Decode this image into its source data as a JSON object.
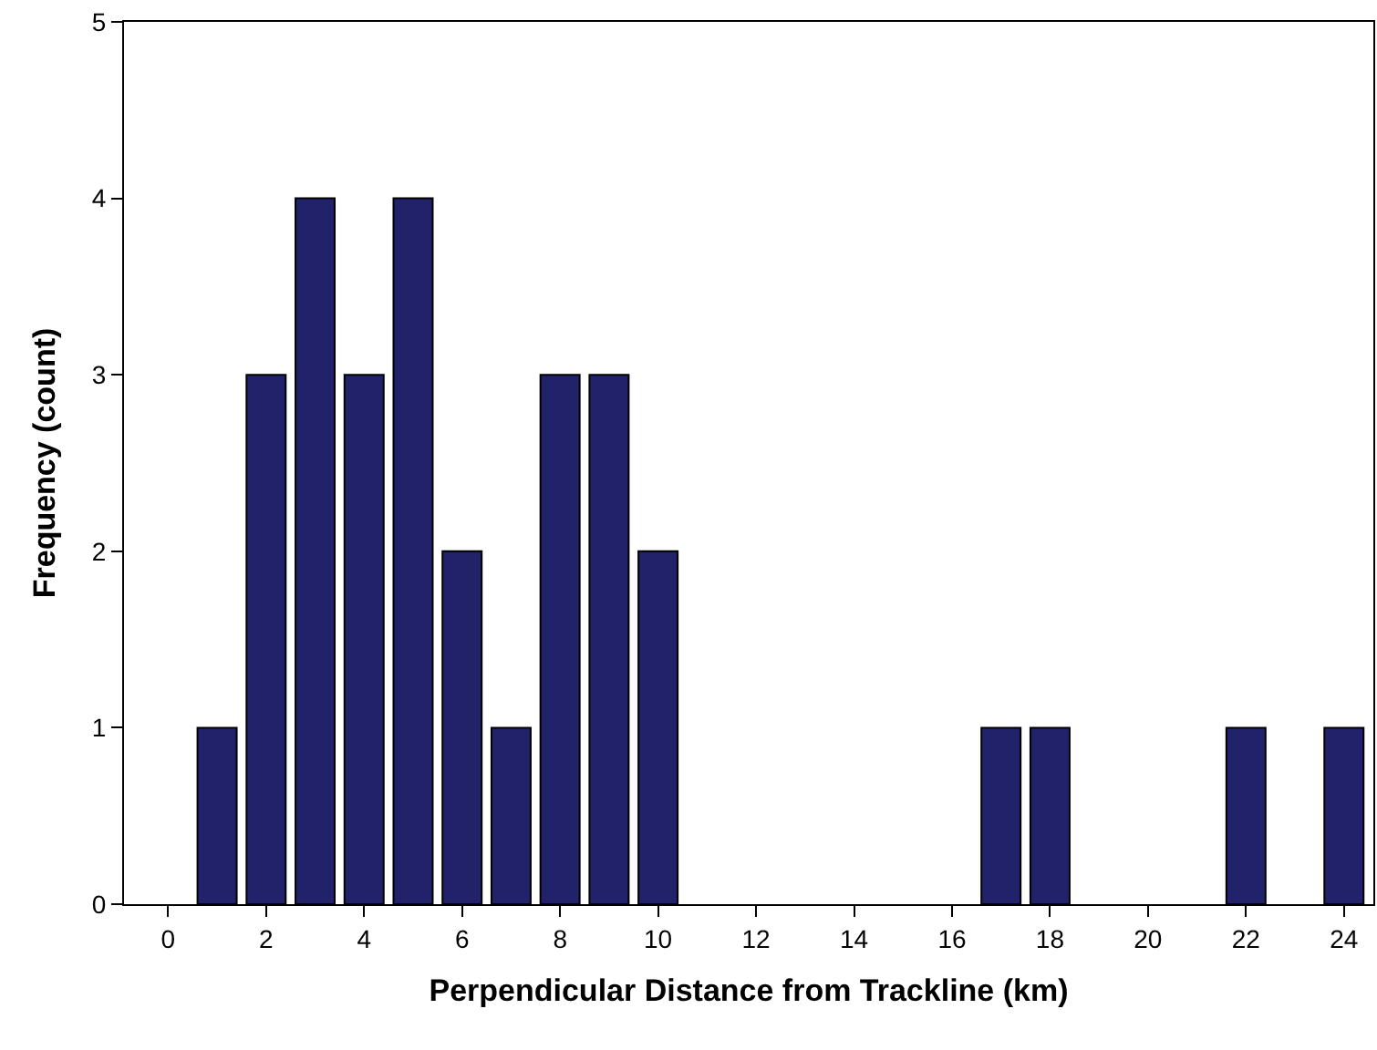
{
  "chart_data": {
    "type": "bar",
    "xlabel": "Perpendicular Distance from Trackline (km)",
    "ylabel": "Frequency (count)",
    "x": [
      1,
      2,
      3,
      4,
      5,
      6,
      7,
      8,
      9,
      10,
      17,
      18,
      22,
      24
    ],
    "values": [
      1,
      3,
      4,
      3,
      4,
      2,
      1,
      3,
      3,
      2,
      1,
      1,
      1,
      1
    ],
    "color": "#22226b",
    "xlim": [
      -0.9,
      24.6
    ],
    "xticks": [
      0,
      2,
      4,
      6,
      8,
      10,
      12,
      14,
      16,
      18,
      20,
      22,
      24
    ],
    "ylim": [
      0,
      5
    ],
    "yticks": [
      0,
      1,
      2,
      3,
      4,
      5
    ],
    "legend": false
  }
}
